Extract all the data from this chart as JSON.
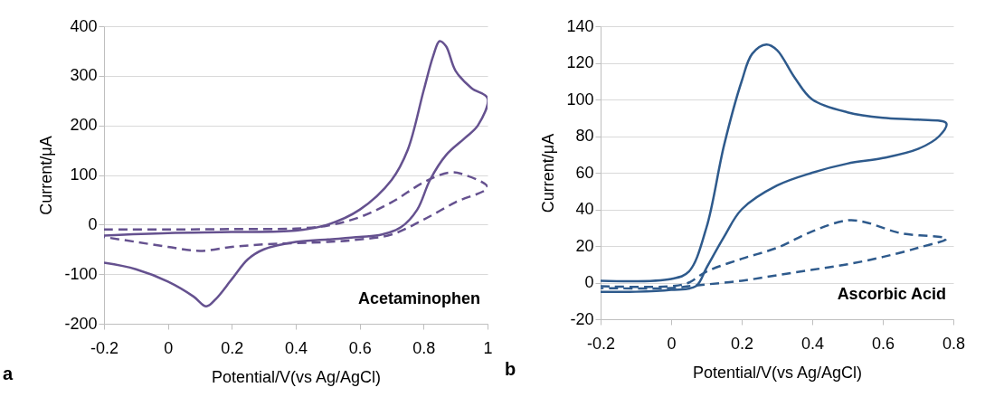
{
  "chart_data": [
    {
      "type": "line",
      "xlabel": "Potential/V(vs Ag/AgCl)",
      "ylabel": "Current/μA",
      "title": "a",
      "annotations": [
        "Acetaminophen"
      ],
      "xlim": [
        -0.2,
        1
      ],
      "xticks": [
        -0.2,
        0,
        0.2,
        0.4,
        0.6,
        0.8,
        1
      ],
      "ylim": [
        -200,
        400
      ],
      "yticks": [
        -200,
        -100,
        0,
        100,
        200,
        300,
        400
      ],
      "grid": "y",
      "marker": "none",
      "series": [
        {
          "color": "#65518f",
          "line_style": "solid",
          "x": [
            -0.2,
            0,
            0.2,
            0.4,
            0.5,
            0.6,
            0.7,
            0.75,
            0.8,
            0.83,
            0.85,
            0.87,
            0.9,
            0.95,
            1,
            0.97,
            0.93,
            0.87,
            0.82,
            0.78,
            0.73,
            0.67,
            0.6,
            0.5,
            0.4,
            0.3,
            0.25,
            0.2,
            0.15,
            0.12,
            0.08,
            0,
            -0.1,
            -0.2
          ],
          "values": [
            -22,
            -17,
            -15,
            -12,
            0,
            30,
            90,
            150,
            270,
            340,
            370,
            360,
            310,
            275,
            255,
            200,
            175,
            140,
            90,
            30,
            -5,
            -20,
            -25,
            -30,
            -35,
            -50,
            -70,
            -110,
            -150,
            -165,
            -145,
            -115,
            -90,
            -77
          ]
        },
        {
          "color": "#65518f",
          "line_style": "dashed",
          "x": [
            -0.2,
            0,
            0.2,
            0.4,
            0.5,
            0.6,
            0.7,
            0.8,
            0.88,
            0.93,
            1,
            0.9,
            0.8,
            0.7,
            0.6,
            0.5,
            0.3,
            0.2,
            0.1,
            0,
            -0.1,
            -0.2
          ],
          "values": [
            -10,
            -10,
            -9,
            -8,
            -2,
            15,
            45,
            85,
            105,
            100,
            75,
            45,
            10,
            -20,
            -30,
            -35,
            -40,
            -45,
            -53,
            -45,
            -35,
            -25
          ]
        }
      ]
    },
    {
      "type": "line",
      "xlabel": "Potential/V(vs Ag/AgCl)",
      "ylabel": "Current/μA",
      "title": "b",
      "annotations": [
        "Ascorbic Acid"
      ],
      "xlim": [
        -0.2,
        0.8
      ],
      "xticks": [
        -0.2,
        0,
        0.2,
        0.4,
        0.6,
        0.8
      ],
      "ylim": [
        -20,
        140
      ],
      "yticks": [
        -20,
        0,
        20,
        40,
        60,
        80,
        100,
        120,
        140
      ],
      "grid": "y",
      "marker": "none",
      "series": [
        {
          "color": "#2e5a8c",
          "line_style": "solid",
          "x": [
            -0.2,
            0,
            0.05,
            0.1,
            0.15,
            0.2,
            0.23,
            0.27,
            0.3,
            0.35,
            0.4,
            0.5,
            0.6,
            0.7,
            0.78,
            0.76,
            0.7,
            0.6,
            0.5,
            0.4,
            0.3,
            0.2,
            0.15,
            0.1,
            0.07,
            0,
            -0.1,
            -0.2
          ],
          "values": [
            1,
            2,
            6,
            30,
            75,
            110,
            125,
            130,
            127,
            112,
            100,
            93,
            90,
            89,
            87,
            80,
            73,
            68,
            65,
            60,
            53,
            40,
            25,
            8,
            -2,
            -4,
            -5,
            -5
          ]
        },
        {
          "color": "#2e5a8c",
          "line_style": "dashed",
          "x": [
            -0.2,
            0,
            0.05,
            0.1,
            0.2,
            0.3,
            0.4,
            0.5,
            0.55,
            0.65,
            0.78,
            0.7,
            0.6,
            0.5,
            0.4,
            0.3,
            0.2,
            0.1,
            0.05,
            0,
            -0.2
          ],
          "values": [
            -2,
            -2,
            0,
            6,
            13,
            19,
            28,
            34,
            33,
            27,
            24,
            19,
            14,
            10,
            7,
            4,
            1,
            -1,
            -2,
            -3,
            -3
          ]
        }
      ]
    }
  ]
}
